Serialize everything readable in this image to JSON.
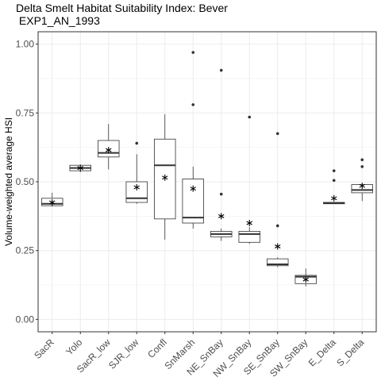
{
  "chart_data": {
    "type": "box",
    "title": "Delta Smelt Habitat Suitability Index: Bever\n EXP1_AN_1993",
    "xlabel": "",
    "ylabel": "Volume-weighted average HSI",
    "ylim": [
      -0.045,
      1.045
    ],
    "yticks": [
      0.0,
      0.25,
      0.5,
      0.75,
      1.0
    ],
    "ytick_labels": [
      "0.00",
      "0.25",
      "0.50",
      "0.75",
      "1.00"
    ],
    "grid": true,
    "legend": "none",
    "mean_marker": "asterisk",
    "categories": [
      "SacR",
      "Yolo",
      "SacR_low",
      "SJR_low",
      "Confl",
      "SnMarsh",
      "NE_SnBay",
      "NW_SnBay",
      "SE_SnBay",
      "SW_SnBay",
      "E_Delta",
      "S_Delta"
    ],
    "boxes": [
      {
        "category": "SacR",
        "min": 0.41,
        "q1": 0.413,
        "median": 0.42,
        "q3": 0.44,
        "max": 0.46,
        "mean": 0.425,
        "outliers": []
      },
      {
        "category": "Yolo",
        "min": 0.535,
        "q1": 0.54,
        "median": 0.55,
        "q3": 0.56,
        "max": 0.563,
        "mean": 0.55,
        "outliers": []
      },
      {
        "category": "SacR_low",
        "min": 0.545,
        "q1": 0.59,
        "median": 0.605,
        "q3": 0.65,
        "max": 0.71,
        "mean": 0.615,
        "outliers": []
      },
      {
        "category": "SJR_low",
        "min": 0.42,
        "q1": 0.425,
        "median": 0.44,
        "q3": 0.5,
        "max": 0.6,
        "mean": 0.48,
        "outliers": [
          0.64
        ]
      },
      {
        "category": "Confl",
        "min": 0.29,
        "q1": 0.365,
        "median": 0.56,
        "q3": 0.655,
        "max": 0.745,
        "mean": 0.515,
        "outliers": []
      },
      {
        "category": "SnMarsh",
        "min": 0.33,
        "q1": 0.35,
        "median": 0.37,
        "q3": 0.51,
        "max": 0.555,
        "mean": 0.475,
        "outliers": [
          0.78,
          0.97
        ]
      },
      {
        "category": "NE_SnBay",
        "min": 0.285,
        "q1": 0.3,
        "median": 0.31,
        "q3": 0.32,
        "max": 0.33,
        "mean": 0.375,
        "outliers": [
          0.455,
          0.905
        ]
      },
      {
        "category": "NW_SnBay",
        "min": 0.275,
        "q1": 0.28,
        "median": 0.31,
        "q3": 0.32,
        "max": 0.335,
        "mean": 0.35,
        "outliers": [
          0.735
        ]
      },
      {
        "category": "SE_SnBay",
        "min": 0.19,
        "q1": 0.195,
        "median": 0.2,
        "q3": 0.22,
        "max": 0.225,
        "mean": 0.265,
        "outliers": [
          0.34,
          0.675
        ]
      },
      {
        "category": "SW_SnBay",
        "min": 0.12,
        "q1": 0.13,
        "median": 0.155,
        "q3": 0.16,
        "max": 0.185,
        "mean": 0.145,
        "outliers": []
      },
      {
        "category": "E_Delta",
        "min": 0.42,
        "q1": 0.42,
        "median": 0.423,
        "q3": 0.425,
        "max": 0.425,
        "mean": 0.44,
        "outliers": [
          0.505,
          0.54
        ]
      },
      {
        "category": "S_Delta",
        "min": 0.43,
        "q1": 0.46,
        "median": 0.47,
        "q3": 0.49,
        "max": 0.49,
        "mean": 0.485,
        "outliers": [
          0.555,
          0.58
        ]
      }
    ]
  }
}
